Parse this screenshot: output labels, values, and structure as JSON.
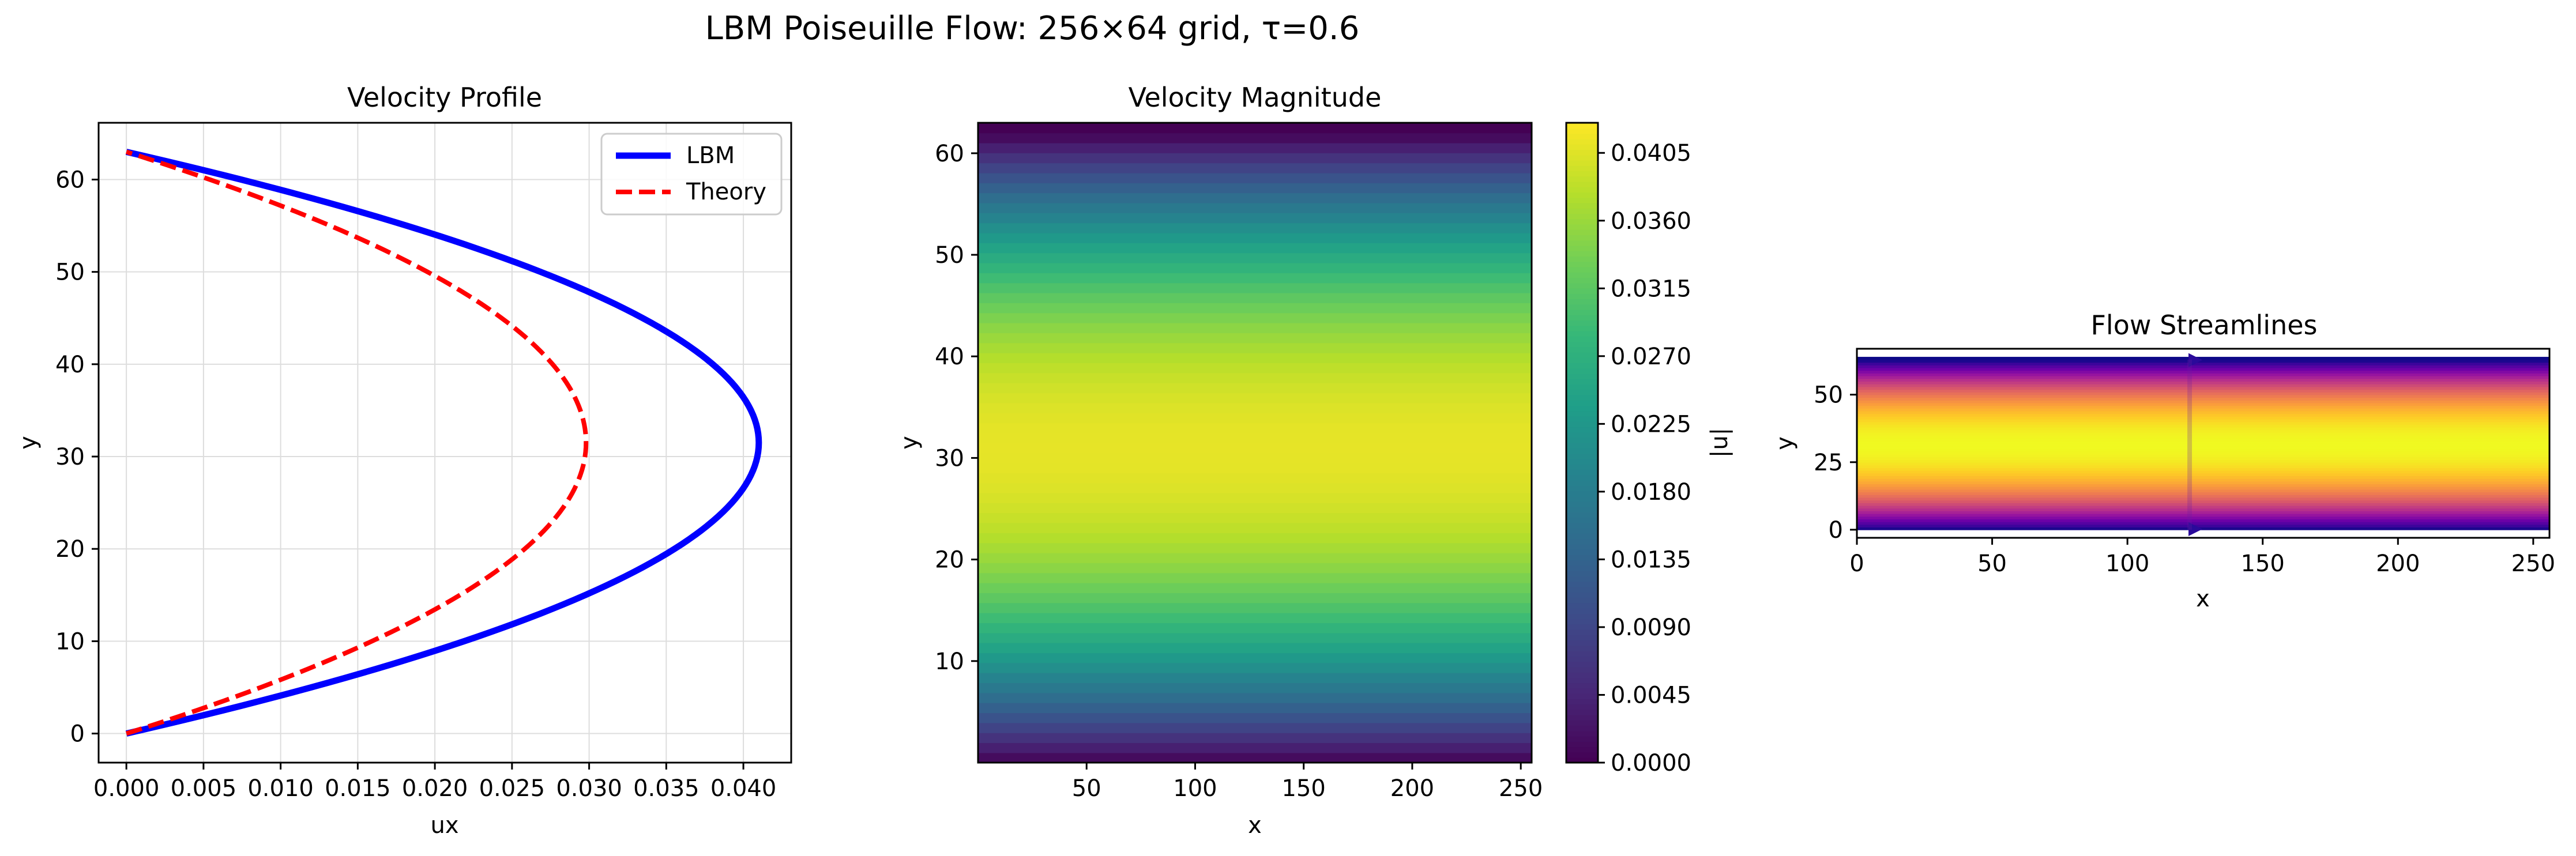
{
  "figure": {
    "title": "LBM Poiseuille Flow: 256×64 grid, τ=0.6"
  },
  "chart_data": [
    {
      "type": "line",
      "title": "Velocity Profile",
      "xlabel": "ux",
      "ylabel": "y",
      "xlim": [
        -0.0018,
        0.0431
      ],
      "ylim": [
        -3.15,
        66.15
      ],
      "xticks": [
        0,
        0.005,
        0.01,
        0.015,
        0.02,
        0.025,
        0.03,
        0.035,
        0.04
      ],
      "xtick_labels": [
        "0.000",
        "0.005",
        "0.010",
        "0.015",
        "0.020",
        "0.025",
        "0.030",
        "0.035",
        "0.040"
      ],
      "yticks": [
        0,
        10,
        20,
        30,
        40,
        50,
        60
      ],
      "ytick_labels": [
        "0",
        "10",
        "20",
        "30",
        "40",
        "50",
        "60"
      ],
      "grid": true,
      "legend_position": "upper right",
      "series": [
        {
          "name": "LBM",
          "color": "#0000ff",
          "style": "solid",
          "profile": "parabolic",
          "max_ux": 0.041,
          "y_range": [
            0,
            63
          ]
        },
        {
          "name": "Theory",
          "color": "#ff0000",
          "style": "dashed",
          "profile": "parabolic",
          "max_ux": 0.0298,
          "y_range": [
            0,
            63
          ]
        }
      ]
    },
    {
      "type": "heatmap",
      "title": "Velocity Magnitude",
      "xlabel": "x",
      "ylabel": "y",
      "xlim": [
        0,
        255
      ],
      "ylim": [
        0,
        63
      ],
      "xticks": [
        50,
        100,
        150,
        200,
        250
      ],
      "xtick_labels": [
        "50",
        "100",
        "150",
        "200",
        "250"
      ],
      "yticks": [
        10,
        20,
        30,
        40,
        50,
        60
      ],
      "ytick_labels": [
        "10",
        "20",
        "30",
        "40",
        "50",
        "60"
      ],
      "colormap": "viridis",
      "value_profile": "parabolic in y, constant in x",
      "max_value": 0.041,
      "colorbar": {
        "label": "|u|",
        "range": [
          0,
          0.0425
        ],
        "ticks": [
          0,
          0.0045,
          0.009,
          0.0135,
          0.018,
          0.0225,
          0.027,
          0.0315,
          0.036,
          0.0405
        ],
        "tick_labels": [
          "0.0000",
          "0.0045",
          "0.0090",
          "0.0135",
          "0.0180",
          "0.0225",
          "0.0270",
          "0.0315",
          "0.0360",
          "0.0405"
        ]
      }
    },
    {
      "type": "heatmap",
      "title": "Flow Streamlines",
      "xlabel": "x",
      "ylabel": "y",
      "xlim": [
        0,
        256
      ],
      "ylim": [
        -3,
        67
      ],
      "xticks": [
        0,
        50,
        100,
        150,
        200,
        250
      ],
      "xtick_labels": [
        "0",
        "50",
        "100",
        "150",
        "200",
        "250"
      ],
      "yticks": [
        0,
        25,
        50
      ],
      "ytick_labels": [
        "0",
        "25",
        "50"
      ],
      "colormap": "plasma",
      "value_profile": "parabolic in y, constant in x",
      "streamline_arrows_at_x": 123
    }
  ],
  "colors": {
    "viridis": [
      "#440154",
      "#482878",
      "#3e4a89",
      "#31688e",
      "#26828e",
      "#1f9e89",
      "#35b779",
      "#6ece58",
      "#b5de2b",
      "#fde725"
    ],
    "plasma": [
      "#0d0887",
      "#46039f",
      "#7201a8",
      "#9c179e",
      "#bd3786",
      "#d8576b",
      "#ed7953",
      "#fb9f3a",
      "#fdca26",
      "#f0f921"
    ],
    "grid": "#dddddd",
    "axes": "#000000"
  }
}
